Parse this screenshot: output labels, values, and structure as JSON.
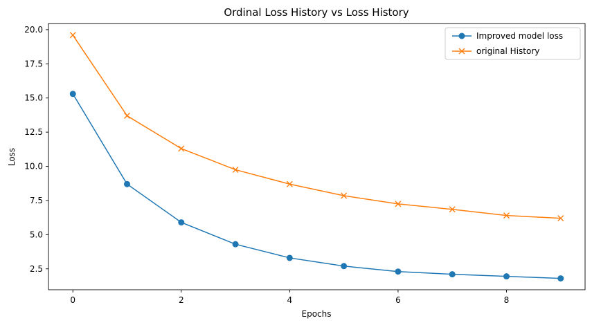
{
  "chart_data": {
    "type": "line",
    "title": "Ordinal Loss History vs Loss History",
    "xlabel": "Epochs",
    "ylabel": "Loss",
    "x": [
      0,
      1,
      2,
      3,
      4,
      5,
      6,
      7,
      8,
      9
    ],
    "xlim": [
      -0.45,
      9.45
    ],
    "ylim": [
      0.97,
      20.45
    ],
    "xticks": [
      0,
      2,
      4,
      6,
      8
    ],
    "xtick_labels": [
      "0",
      "2",
      "4",
      "6",
      "8"
    ],
    "yticks": [
      2.5,
      5.0,
      7.5,
      10.0,
      12.5,
      15.0,
      17.5,
      20.0
    ],
    "ytick_labels": [
      "2.5",
      "5.0",
      "7.5",
      "10.0",
      "12.5",
      "15.0",
      "17.5",
      "20.0"
    ],
    "grid": false,
    "legend_position": "top-right",
    "series": [
      {
        "name": "Improved model loss",
        "color": "#1f77b4",
        "marker": "circle",
        "values": [
          15.3,
          8.7,
          5.9,
          4.3,
          3.3,
          2.7,
          2.3,
          2.1,
          1.95,
          1.8
        ]
      },
      {
        "name": "original History",
        "color": "#ff7f0e",
        "marker": "x",
        "values": [
          19.6,
          13.7,
          11.3,
          9.75,
          8.7,
          7.85,
          7.25,
          6.85,
          6.4,
          6.2
        ]
      }
    ]
  }
}
